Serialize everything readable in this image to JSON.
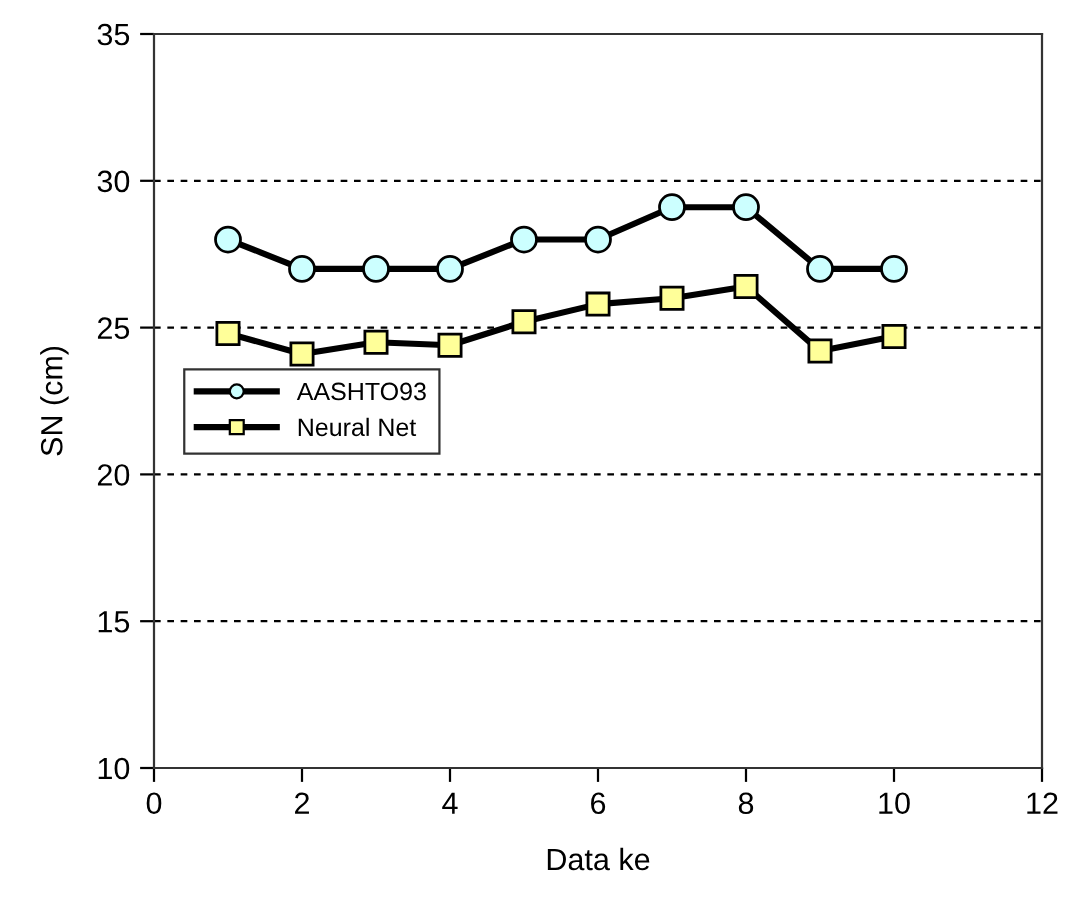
{
  "chart_data": {
    "type": "line",
    "xlabel": "Data ke",
    "ylabel": "SN (cm)",
    "x": [
      1,
      2,
      3,
      4,
      5,
      6,
      7,
      8,
      9,
      10
    ],
    "series": [
      {
        "name": "AASHTO93",
        "color": "#ccffff",
        "marker": "circle",
        "values": [
          28,
          27,
          27,
          27,
          28,
          28,
          29.1,
          29.1,
          27,
          27
        ]
      },
      {
        "name": "Neural Net",
        "color": "#ffff99",
        "marker": "square",
        "values": [
          24.8,
          24.1,
          24.5,
          24.4,
          25.2,
          25.8,
          26.0,
          26.4,
          24.2,
          24.7
        ]
      }
    ],
    "xlim": [
      0,
      12
    ],
    "xticks": [
      0,
      2,
      4,
      6,
      8,
      10,
      12
    ],
    "ylim": [
      10,
      35
    ],
    "yticks": [
      10,
      15,
      20,
      25,
      30,
      35
    ],
    "grid": "y",
    "legend": "left",
    "line_style": "solid"
  }
}
